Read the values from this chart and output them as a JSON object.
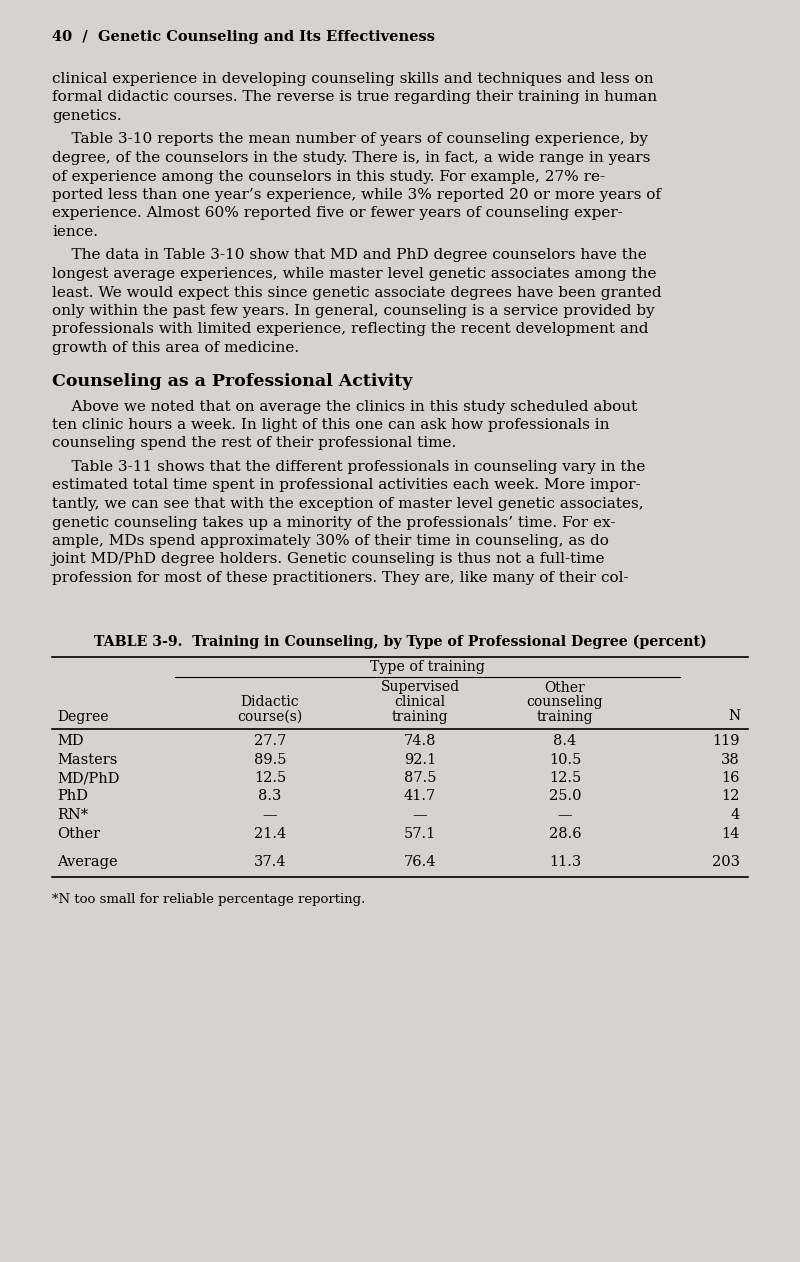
{
  "page_number": "40",
  "chapter_title": "Genetic Counseling and Its Effectiveness",
  "background_color": "#d6d3ce",
  "text_color": "#000000",
  "body_paragraphs": [
    "clinical experience in developing counseling skills and techniques and less on formal didactic courses. The reverse is true regarding their training in human genetics.",
    "    Table 3-10 reports the mean number of years of counseling experience, by degree, of the counselors in the study. There is, in fact, a wide range in years of experience among the counselors in this study. For example, 27% re­ported less than one year’s experience, while 3% reported 20 or more years of experience. Almost 60% reported five or fewer years of counseling exper­ience.",
    "    The data in Table 3-10 show that MD and PhD degree counselors have the longest average experiences, while master level genetic associates among the least. We would expect this since genetic associate degrees have been granted only within the past few years. In general, counseling is a service provided by professionals with limited experience, reflecting the recent development and growth of this area of medicine."
  ],
  "section_heading": "Counseling as a Professional Activity",
  "section_paragraphs": [
    "    Above we noted that on average the clinics in this study scheduled about ten clinic hours a week. In light of this one can ask how professionals in counseling spend the rest of their professional time.",
    "    Table 3-11 shows that the different professionals in counseling vary in the estimated total time spent in professional activities each week. More impor­tantly, we can see that with the exception of master level genetic associates, genetic counseling takes up a minority of the professionals’ time. For ex­ample, MDs spend approximately 30% of their time in counseling, as do joint MD/PhD degree holders. Genetic counseling is thus not a full-time profession for most of these practitioners. They are, like many of their col-"
  ],
  "table_title": "TABLE 3-9.  Training in Counseling, by Type of Professional Degree (percent)",
  "col_group_header": "Type of training",
  "col_headers": [
    "Degree",
    "Didactic\ncourse(s)",
    "Supervised\nclinical\ntraining",
    "Other\ncounseling\ntraining",
    "N"
  ],
  "rows": [
    [
      "MD",
      "27.7",
      "74.8",
      "8.4",
      "119"
    ],
    [
      "Masters",
      "89.5",
      "92.1",
      "10.5",
      "38"
    ],
    [
      "MD/PhD",
      "12.5",
      "87.5",
      "12.5",
      "16"
    ],
    [
      "PhD",
      "8.3",
      "41.7",
      "25.0",
      "12"
    ],
    [
      "RN*",
      "—",
      "—",
      "—",
      "4"
    ],
    [
      "Other",
      "21.4",
      "57.1",
      "28.6",
      "14"
    ]
  ],
  "average_row": [
    "Average",
    "37.4",
    "76.4",
    "11.3",
    "203"
  ],
  "footnote": "*N too small for reliable percentage reporting."
}
